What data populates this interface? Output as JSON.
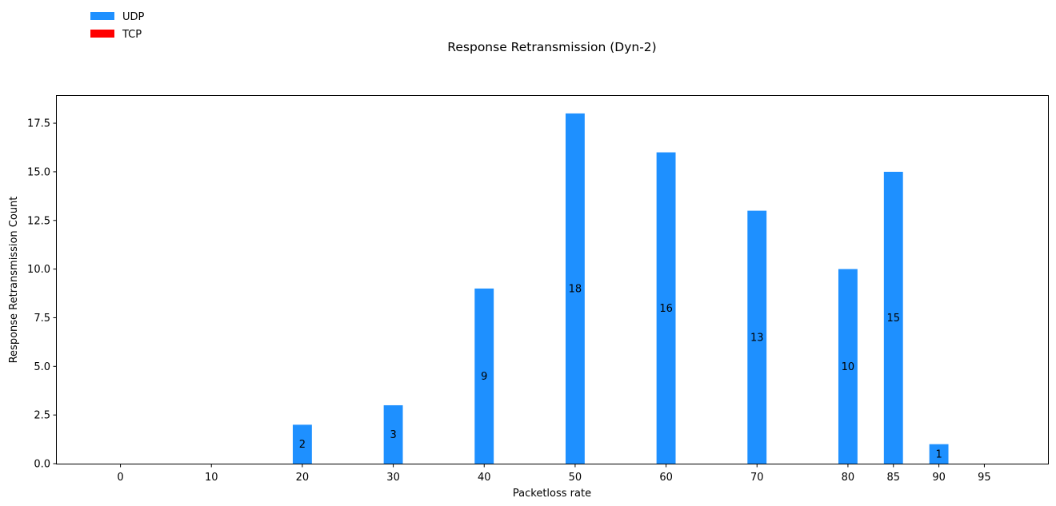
{
  "chart_data": {
    "type": "bar",
    "title": "Response Retransmission (Dyn-2)",
    "xlabel": "Packetloss rate",
    "ylabel": "Response Retransmission Count",
    "x_ticks": [
      "0",
      "10",
      "20",
      "30",
      "40",
      "50",
      "60",
      "70",
      "80",
      "85",
      "90",
      "95"
    ],
    "x_tick_values": [
      0,
      10,
      20,
      30,
      40,
      50,
      60,
      70,
      80,
      85,
      90,
      95
    ],
    "xlim": [
      -7,
      102
    ],
    "y_ticks": [
      "0.0",
      "2.5",
      "5.0",
      "7.5",
      "10.0",
      "12.5",
      "15.0",
      "17.5"
    ],
    "y_tick_values": [
      0,
      2.5,
      5,
      7.5,
      10,
      12.5,
      15,
      17.5
    ],
    "ylim": [
      0,
      18.9
    ],
    "grid": false,
    "legend_position": "top-left",
    "series": [
      {
        "name": "UDP",
        "color": "#1e90ff",
        "x": [
          0,
          10,
          20,
          30,
          40,
          50,
          60,
          70,
          80,
          85,
          90,
          95
        ],
        "values": [
          0,
          0,
          2,
          3,
          9,
          18,
          16,
          13,
          10,
          15,
          1,
          0
        ],
        "labels": [
          "",
          "",
          "2",
          "3",
          "9",
          "18",
          "16",
          "13",
          "10",
          "15",
          "1",
          ""
        ]
      },
      {
        "name": "TCP",
        "color": "#ff0000",
        "x": [
          0,
          10,
          20,
          30,
          40,
          50,
          60,
          70,
          80,
          85,
          90,
          95
        ],
        "values": [
          0,
          0,
          0,
          0,
          0,
          0,
          0,
          0,
          0,
          0,
          0,
          0
        ],
        "labels": [
          "",
          "",
          "",
          "",
          "",
          "",
          "",
          "",
          "",
          "",
          "",
          ""
        ]
      }
    ]
  }
}
